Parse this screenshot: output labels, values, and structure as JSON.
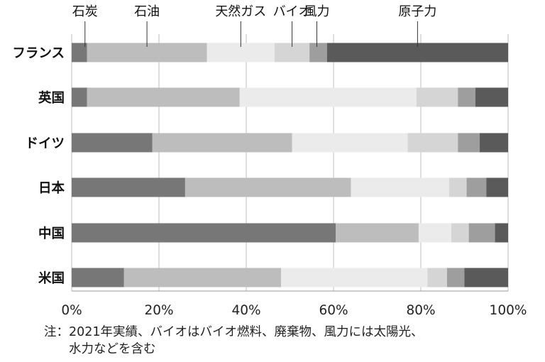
{
  "chart_data": {
    "type": "bar",
    "orientation": "horizontal",
    "stacked": true,
    "categories": [
      "フランス",
      "英国",
      "ドイツ",
      "日本",
      "中国",
      "米国"
    ],
    "series": [
      {
        "name": "石炭",
        "values": [
          3.5,
          3.5,
          18.5,
          26,
          60.5,
          12
        ],
        "color": "#777777"
      },
      {
        "name": "石油",
        "values": [
          27.5,
          35,
          32,
          38,
          19,
          36
        ],
        "color": "#bdbdbd"
      },
      {
        "name": "天然ガス",
        "values": [
          15.5,
          40.5,
          26.5,
          22.5,
          7.5,
          33.5
        ],
        "color": "#ebebeb"
      },
      {
        "name": "バイオ",
        "values": [
          8,
          9.5,
          11.5,
          4,
          4,
          4.5
        ],
        "color": "#d5d5d5"
      },
      {
        "name": "風力",
        "values": [
          4,
          4,
          5,
          4.5,
          6,
          4
        ],
        "color": "#9e9e9e"
      },
      {
        "name": "原子力",
        "values": [
          41.5,
          7.5,
          6.5,
          5,
          3,
          10
        ],
        "color": "#5a5a5a"
      }
    ],
    "xlim": [
      0,
      100
    ],
    "xticks": [
      "0%",
      "20%",
      "40%",
      "60%",
      "80%",
      "100%"
    ],
    "grid": true,
    "legend": "top-callouts",
    "xlabel": "",
    "ylabel": "",
    "title": ""
  },
  "note": {
    "line1": "注：2021年実績、バイオはバイオ燃料、廃棄物、風力には太陽光、",
    "line2": "水力などを含む"
  }
}
